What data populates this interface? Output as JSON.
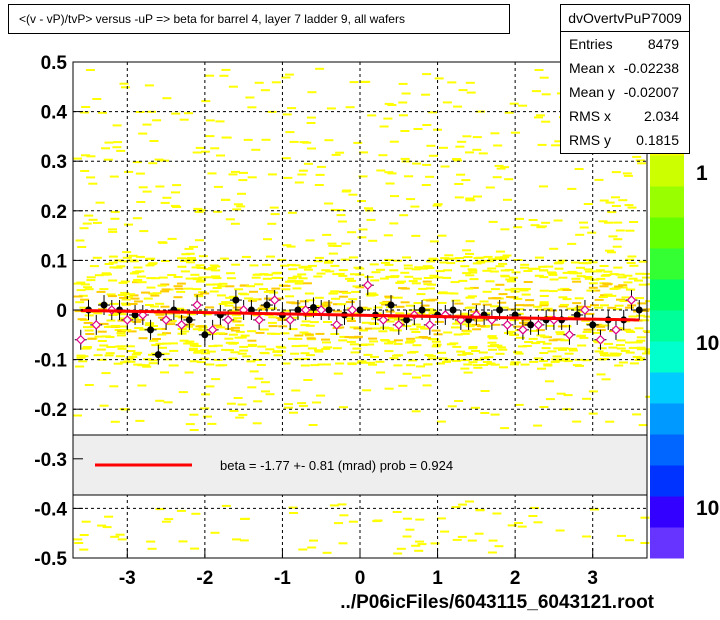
{
  "title": "<(v - vP)/tvP> versus  -uP => beta for barrel 4, layer 7 ladder 9, all wafers",
  "stats": {
    "name": "dvOvertvPuP7009",
    "rows": [
      {
        "key": "Entries",
        "value": "8479"
      },
      {
        "key": "Mean x",
        "value": "-0.02238"
      },
      {
        "key": "Mean y",
        "value": "-0.02007"
      },
      {
        "key": "RMS x",
        "value": "2.034"
      },
      {
        "key": "RMS y",
        "value": "0.1815"
      }
    ]
  },
  "legend": {
    "text": "beta =   -1.77 +-  0.81 (mrad) prob = 0.924",
    "line_color": "#ff0000"
  },
  "colorbar": {
    "labels": [
      "1",
      "10",
      "10"
    ],
    "colors": [
      "#6633ff",
      "#3300ff",
      "#0033ff",
      "#0066ff",
      "#0099ff",
      "#00ccff",
      "#00ffcc",
      "#00ff99",
      "#00ff66",
      "#33ff33",
      "#66ff00",
      "#99ff00",
      "#ccff00",
      "#ffff00",
      "#ffcc00",
      "#ff9900"
    ]
  },
  "chart_data": {
    "type": "scatter",
    "xlabel": "../P06icFiles/6043115_6043121.root",
    "ylabel": "",
    "xlim": [
      -3.7,
      3.7
    ],
    "ylim": [
      -0.5,
      0.5
    ],
    "x_ticks": [
      "-3",
      "-2",
      "-1",
      "0",
      "1",
      "2",
      "3"
    ],
    "y_ticks": [
      "0.5",
      "0.4",
      "0.3",
      "0.2",
      "0.1",
      "0",
      "-0.1",
      "-0.2",
      "-0.3",
      "-0.4",
      "-0.5"
    ],
    "grid": true,
    "heatmap_color": "#ffff00",
    "fit_line": {
      "color": "#ff0000",
      "x": [
        -3.6,
        3.6
      ],
      "y": [
        -0.001,
        -0.02
      ]
    },
    "series": [
      {
        "marker": "filled-circle",
        "color": "#000000",
        "x": [
          -3.5,
          -3.3,
          -3.1,
          -2.9,
          -2.7,
          -2.6,
          -2.4,
          -2.2,
          -2.0,
          -1.8,
          -1.6,
          -1.4,
          -1.2,
          -1.0,
          -0.8,
          -0.6,
          -0.4,
          -0.2,
          0.0,
          0.2,
          0.4,
          0.6,
          0.8,
          1.0,
          1.2,
          1.4,
          1.6,
          1.8,
          2.0,
          2.2,
          2.4,
          2.6,
          2.8,
          3.0,
          3.2,
          3.4,
          3.6
        ],
        "y": [
          0.0,
          0.01,
          0.0,
          -0.01,
          -0.04,
          -0.09,
          0.0,
          -0.02,
          -0.05,
          -0.01,
          0.02,
          0.0,
          0.01,
          -0.01,
          0.0,
          0.005,
          0.0,
          -0.01,
          0.0,
          -0.01,
          0.01,
          -0.02,
          0.0,
          -0.01,
          0.0,
          -0.02,
          -0.01,
          0.0,
          -0.01,
          -0.03,
          -0.02,
          -0.02,
          -0.01,
          -0.03,
          -0.02,
          -0.02,
          0.0
        ]
      },
      {
        "marker": "open-diamond",
        "color": "#dd0088",
        "x": [
          -3.6,
          -3.4,
          -3.2,
          -3.0,
          -2.8,
          -2.5,
          -2.3,
          -2.1,
          -1.9,
          -1.7,
          -1.5,
          -1.3,
          -1.1,
          -0.9,
          -0.7,
          -0.5,
          -0.3,
          -0.1,
          0.1,
          0.3,
          0.5,
          0.7,
          0.9,
          1.1,
          1.3,
          1.5,
          1.7,
          1.9,
          2.1,
          2.3,
          2.5,
          2.7,
          2.9,
          3.1,
          3.3,
          3.5
        ],
        "y": [
          -0.06,
          -0.03,
          0.0,
          -0.02,
          -0.01,
          -0.02,
          -0.03,
          0.01,
          -0.04,
          -0.02,
          0.0,
          -0.02,
          0.02,
          -0.02,
          0.0,
          0.0,
          -0.03,
          0.0,
          0.05,
          -0.02,
          -0.03,
          -0.01,
          -0.03,
          -0.01,
          -0.02,
          -0.01,
          -0.02,
          -0.03,
          -0.04,
          -0.03,
          -0.02,
          -0.05,
          0.0,
          -0.06,
          -0.04,
          0.02
        ]
      }
    ]
  }
}
